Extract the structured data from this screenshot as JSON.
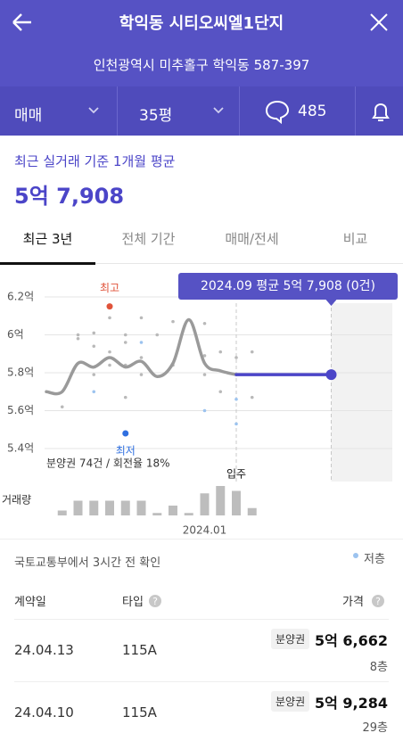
{
  "header": {
    "title": "학익동 시티오씨엘1단지",
    "address": "인천광역시 미추홀구 학익동 587-397"
  },
  "filters": {
    "deal_type": "매매",
    "size": "35평",
    "comments": 485
  },
  "summary": {
    "label": "최근 실거래 기준 1개월 평균",
    "price": "5억 7,908"
  },
  "tabs": [
    "최근 3년",
    "전체 기간",
    "매매/전세",
    "비교"
  ],
  "chart_data": {
    "type": "line",
    "categories": [
      null,
      null,
      null,
      null,
      null,
      null,
      null,
      null,
      null,
      null,
      "2024.01",
      null,
      null,
      null,
      null,
      null,
      null,
      null,
      null,
      null,
      null,
      null
    ],
    "ylim": [
      5.4,
      6.2
    ],
    "yticks": [
      {
        "value": 5.4,
        "label": "5.4억"
      },
      {
        "value": 5.6,
        "label": "5.6억"
      },
      {
        "value": 5.8,
        "label": "5.8억"
      },
      {
        "value": 6,
        "label": "6억"
      },
      {
        "value": 6.2,
        "label": "6.2억"
      }
    ],
    "grid": true,
    "series": [
      {
        "color": "#9a9a9a",
        "values": [
          5.7,
          5.7,
          5.85,
          5.83,
          5.88,
          5.83,
          5.86,
          5.78,
          5.85,
          6.08,
          5.85,
          5.81,
          5.79,
          null,
          null,
          null,
          null,
          null,
          null,
          null,
          null,
          null
        ]
      },
      {
        "color": "#4b45c8",
        "values": [
          null,
          null,
          null,
          null,
          null,
          null,
          null,
          null,
          null,
          null,
          null,
          null,
          5.79,
          5.79,
          5.79,
          5.79,
          5.79,
          5.79,
          5.79,
          null,
          null,
          null
        ]
      }
    ],
    "deals": {
      "color": "#b9b9b9",
      "x": [
        1,
        2,
        2,
        3,
        3,
        3,
        4,
        4,
        4,
        5,
        5,
        5,
        5,
        6,
        6,
        6,
        7,
        8,
        8,
        10,
        10,
        10,
        11,
        11,
        12,
        12,
        13,
        13
      ],
      "values": [
        5.62,
        6.0,
        5.98,
        6.01,
        5.94,
        5.79,
        6.09,
        5.91,
        5.84,
        6.0,
        5.96,
        5.84,
        5.67,
        6.09,
        5.88,
        5.79,
        6.0,
        6.07,
        5.84,
        6.06,
        5.89,
        5.79,
        5.91,
        5.7,
        5.88,
        5.79,
        5.91,
        5.67
      ]
    },
    "low_floor": {
      "name": "저층",
      "color": "#9cc3ef",
      "x": [
        3,
        6,
        10,
        12,
        12
      ],
      "values": [
        5.7,
        5.96,
        5.6,
        5.66,
        5.53
      ]
    },
    "high": {
      "label": "최고",
      "x": 4,
      "value": 6.15,
      "color": "#e0533a"
    },
    "low": {
      "label": "최저",
      "x": 5,
      "value": 5.48,
      "color": "#2f6fe0"
    },
    "tooltip": "2024.09 평균 5억 7,908 (0건)",
    "note": "분양권 74건 / 회전율 18%",
    "move_in": "입주",
    "volume": {
      "label": "거래량",
      "color": "#bdbdbd",
      "values": [
        null,
        2,
        6,
        6,
        6,
        6,
        6,
        1,
        4,
        1,
        9,
        12,
        10,
        3,
        null,
        null,
        null,
        null,
        null,
        null,
        null,
        null
      ]
    }
  },
  "source": "국토교통부에서 3시간 전 확인",
  "table": {
    "columns": [
      "계약일",
      "타입",
      "가격"
    ],
    "rows": [
      [
        "24.04.13",
        "115A",
        "분양권",
        "5억 6,662",
        "8층"
      ],
      [
        "24.04.10",
        "115A",
        "분양권",
        "5억 9,284",
        "29층"
      ]
    ]
  }
}
